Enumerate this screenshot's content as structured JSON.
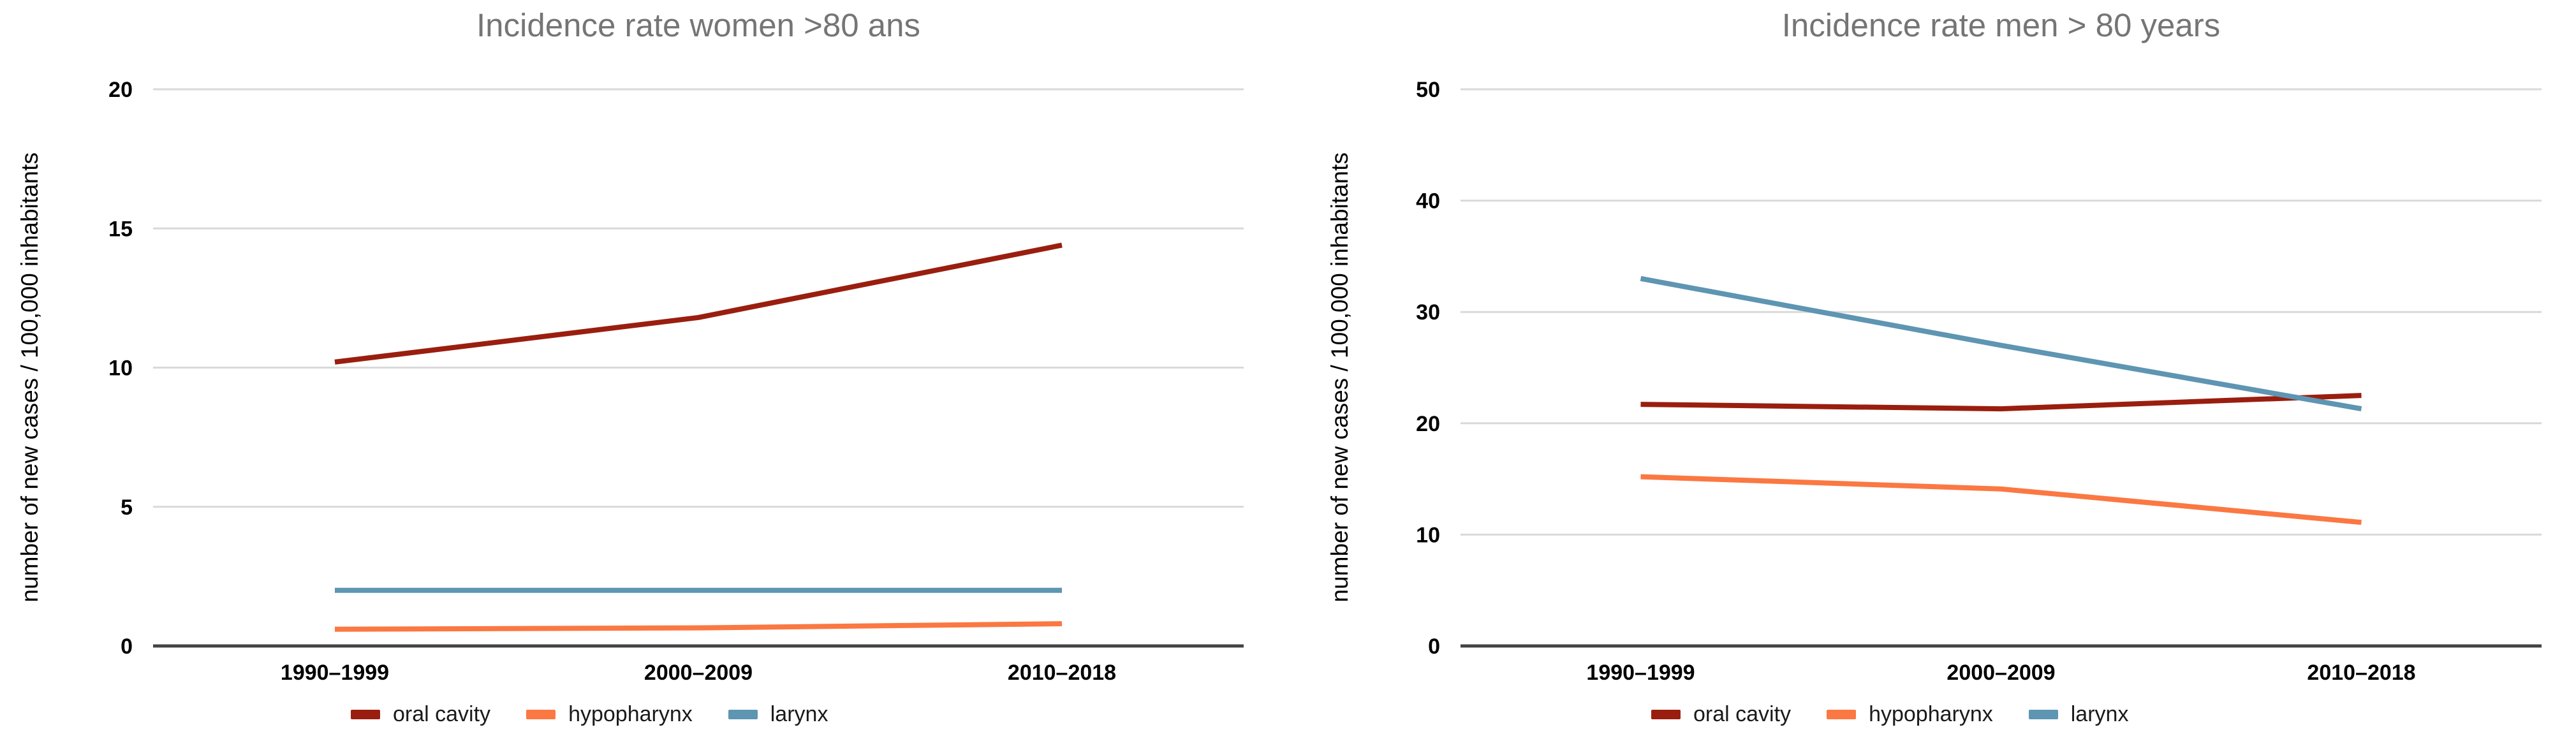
{
  "chart_data": [
    {
      "type": "line",
      "title": "Incidence rate women >80 ans",
      "ylabel": "number of new cases / 100,000 inhabitants",
      "xlabel": "",
      "categories": [
        "1990–1999",
        "2000–2009",
        "2010–2018"
      ],
      "ylim": [
        0,
        20
      ],
      "yticks": [
        0,
        5,
        10,
        15,
        20
      ],
      "grid": true,
      "legend_position": "bottom",
      "series": [
        {
          "name": "oral cavity",
          "color": "#9A1E0F",
          "values": [
            10.2,
            11.8,
            14.4
          ]
        },
        {
          "name": "hypopharynx",
          "color": "#FB7842",
          "values": [
            0.6,
            0.65,
            0.8
          ]
        },
        {
          "name": "larynx",
          "color": "#5E95B2",
          "values": [
            2.0,
            2.0,
            2.0
          ]
        }
      ]
    },
    {
      "type": "line",
      "title": "Incidence rate men > 80 years",
      "ylabel": "number of new cases / 100,000 inhabitants",
      "xlabel": "",
      "categories": [
        "1990–1999",
        "2000–2009",
        "2010–2018"
      ],
      "ylim": [
        0,
        50
      ],
      "yticks": [
        0,
        10,
        20,
        30,
        40,
        50
      ],
      "grid": true,
      "legend_position": "bottom",
      "series": [
        {
          "name": "oral cavity",
          "color": "#9A1E0F",
          "values": [
            21.7,
            21.3,
            22.5
          ]
        },
        {
          "name": "hypopharynx",
          "color": "#FB7842",
          "values": [
            15.2,
            14.1,
            11.1
          ]
        },
        {
          "name": "larynx",
          "color": "#5E95B2",
          "values": [
            33.0,
            27.0,
            21.3
          ]
        }
      ]
    }
  ],
  "style_colors": {
    "title_gray": "#757575",
    "gridline": "#d9d9d9",
    "axis_line": "#434343",
    "tick_text": "#000000"
  }
}
